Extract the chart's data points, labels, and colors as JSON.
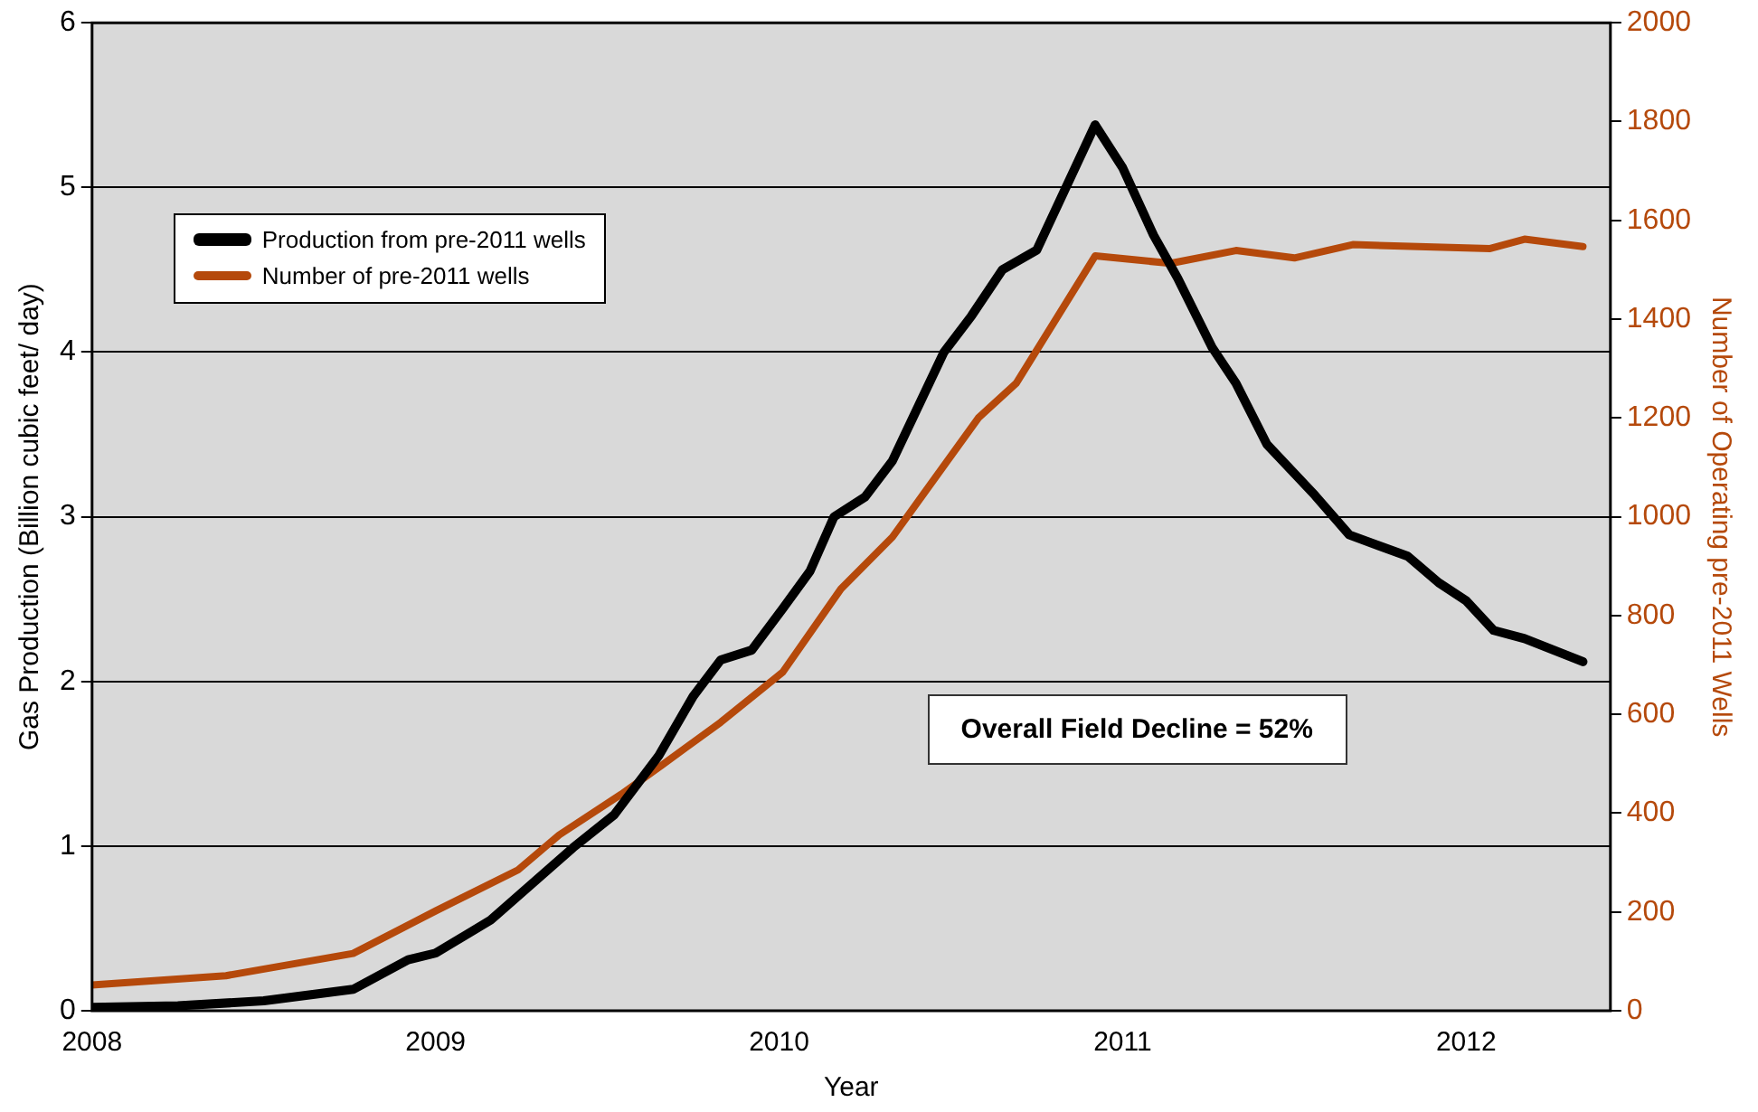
{
  "chart_data": {
    "type": "line",
    "xlabel": "Year",
    "ylabel": "Gas Production (Billion cubic feet/ day)",
    "y2label": "Number of Operating pre-2011 Wells",
    "series": [
      {
        "name": "Production from pre-2011 wells",
        "color": "#000000",
        "x": [
          2008,
          2008.25,
          2008.5,
          2008.76,
          2008.92,
          2009,
          2009.16,
          2009.4,
          2009.52,
          2009.65,
          2009.75,
          2009.83,
          2009.92,
          2010.01,
          2010.09,
          2010.16,
          2010.25,
          2010.33,
          2010.48,
          2010.56,
          2010.65,
          2010.75,
          2010.92,
          2011,
          2011.09,
          2011.16,
          2011.26,
          2011.33,
          2011.42,
          2011.56,
          2011.66,
          2011.83,
          2011.92,
          2012,
          2012.08,
          2012.17,
          2012.34
        ],
        "values": [
          0.02,
          0.03,
          0.06,
          0.13,
          0.31,
          0.35,
          0.55,
          0.99,
          1.19,
          1.55,
          1.91,
          2.13,
          2.19,
          2.44,
          2.67,
          3.0,
          3.12,
          3.34,
          4.0,
          4.22,
          4.5,
          4.62,
          5.38,
          5.12,
          4.71,
          4.45,
          4.03,
          3.81,
          3.44,
          3.13,
          2.89,
          2.76,
          2.6,
          2.49,
          2.31,
          2.26,
          2.12
        ]
      },
      {
        "name": "Number of pre-2011 wells",
        "color": "#b5490b",
        "axis": "y2",
        "x": [
          2008,
          2008.39,
          2008.76,
          2009,
          2009.24,
          2009.36,
          2009.54,
          2009.66,
          2009.83,
          2010.01,
          2010.18,
          2010.33,
          2010.58,
          2010.69,
          2010.92,
          2011.14,
          2011.33,
          2011.5,
          2011.67,
          2011.86,
          2012.07,
          2012.17,
          2012.34
        ],
        "values": [
          52,
          71,
          116,
          202,
          285,
          356,
          438,
          498,
          584,
          685,
          854,
          959,
          1200,
          1270,
          1528,
          1513,
          1539,
          1524,
          1551,
          1547,
          1543,
          1562,
          1547
        ]
      }
    ],
    "xlim": [
      2008,
      2012.42
    ],
    "xticks": [
      2008,
      2009,
      2010,
      2011,
      2012
    ],
    "ylim": [
      0,
      6
    ],
    "yticks": [
      0,
      1,
      2,
      3,
      4,
      5,
      6
    ],
    "y2lim": [
      0,
      2000
    ],
    "y2ticks": [
      0,
      200,
      400,
      600,
      800,
      1000,
      1200,
      1400,
      1600,
      1800,
      2000
    ],
    "grid": "y",
    "legend": "top left",
    "marker": "none",
    "line_style": "solid",
    "annotations": [
      "Overall Field Decline = 52%"
    ]
  }
}
